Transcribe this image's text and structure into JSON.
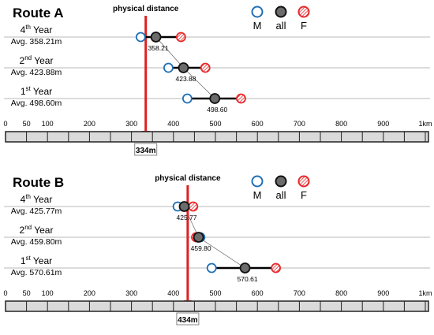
{
  "chart_data": [
    {
      "type": "dot-range",
      "title": "Route  A",
      "legend": {
        "items": [
          {
            "key": "M",
            "label": "M"
          },
          {
            "key": "all",
            "label": "all"
          },
          {
            "key": "F",
            "label": "F"
          }
        ]
      },
      "rows": [
        {
          "year": "4",
          "sup": "th",
          "suffix": " Year",
          "avg_label": "Avg. 358.21m",
          "M": 322,
          "all": 358.21,
          "F": 418,
          "value_label": "358.21"
        },
        {
          "year": "2",
          "sup": "nd",
          "suffix": " Year",
          "avg_label": "Avg. 423.88m",
          "M": 388,
          "all": 423.88,
          "F": 476,
          "value_label": "423.88"
        },
        {
          "year": "1",
          "sup": "st",
          "suffix": " Year",
          "avg_label": "Avg. 498.60m",
          "M": 433,
          "all": 498.6,
          "F": 561,
          "value_label": "498.60"
        }
      ],
      "marker": {
        "label": "physical distance",
        "value": 334,
        "value_label": "334m"
      },
      "axis": {
        "min": 0,
        "max": 1000,
        "ticks": [
          {
            "value": 0,
            "label": "0"
          },
          {
            "value": 50,
            "label": "50"
          },
          {
            "value": 100,
            "label": "100"
          },
          {
            "value": 200,
            "label": "200"
          },
          {
            "value": 300,
            "label": "300"
          },
          {
            "value": 400,
            "label": "400"
          },
          {
            "value": 500,
            "label": "500"
          },
          {
            "value": 600,
            "label": "600"
          },
          {
            "value": 700,
            "label": "700"
          },
          {
            "value": 800,
            "label": "800"
          },
          {
            "value": 900,
            "label": "900"
          },
          {
            "value": 1000,
            "label": "1km"
          }
        ]
      }
    },
    {
      "type": "dot-range",
      "title": "Route  B",
      "legend": {
        "items": [
          {
            "key": "M",
            "label": "M"
          },
          {
            "key": "all",
            "label": "all"
          },
          {
            "key": "F",
            "label": "F"
          }
        ]
      },
      "rows": [
        {
          "year": "4",
          "sup": "th",
          "suffix": " Year",
          "avg_label": "Avg. 425.77m",
          "M": 410,
          "all": 425.77,
          "F": 447,
          "value_label": "425.77"
        },
        {
          "year": "2",
          "sup": "nd",
          "suffix": " Year",
          "avg_label": "Avg. 459.80m",
          "M": 464,
          "all": 459.8,
          "F": 454,
          "value_label": "459.80"
        },
        {
          "year": "1",
          "sup": "st",
          "suffix": " Year",
          "avg_label": "Avg. 570.61m",
          "M": 491,
          "all": 570.61,
          "F": 644,
          "value_label": "570.61"
        }
      ],
      "marker": {
        "label": "physical distance",
        "value": 434,
        "value_label": "434m"
      },
      "axis": {
        "min": 0,
        "max": 1000,
        "ticks": [
          {
            "value": 0,
            "label": "0"
          },
          {
            "value": 50,
            "label": "50"
          },
          {
            "value": 100,
            "label": "100"
          },
          {
            "value": 200,
            "label": "200"
          },
          {
            "value": 300,
            "label": "300"
          },
          {
            "value": 400,
            "label": "400"
          },
          {
            "value": 500,
            "label": "500"
          },
          {
            "value": 600,
            "label": "600"
          },
          {
            "value": 700,
            "label": "700"
          },
          {
            "value": 800,
            "label": "800"
          },
          {
            "value": 900,
            "label": "900"
          },
          {
            "value": 1000,
            "label": "1km"
          }
        ]
      }
    }
  ],
  "colors": {
    "male": "#1f6fb5",
    "all_fill": "#6b6b6b",
    "female": "#e8272a",
    "marker": "#dd2222",
    "line": "#000000",
    "row_line": "#b8b8b8",
    "scale_fill": "#dadada"
  }
}
